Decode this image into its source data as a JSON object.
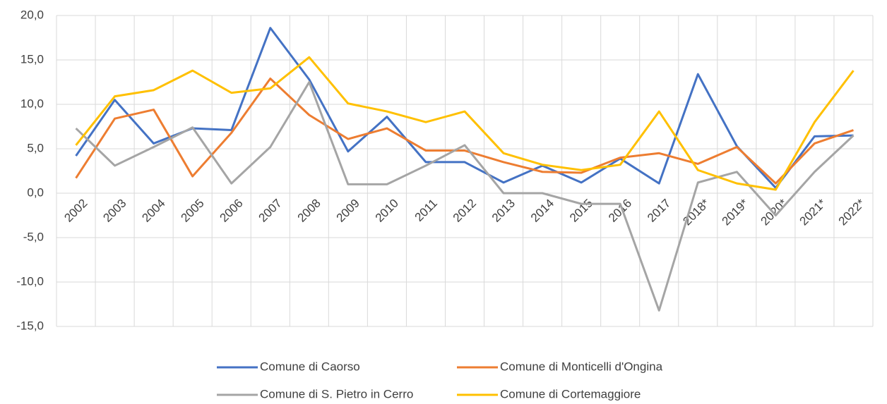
{
  "chart_data": {
    "type": "line",
    "categories": [
      "2002",
      "2003",
      "2004",
      "2005",
      "2006",
      "2007",
      "2008",
      "2009",
      "2010",
      "2011",
      "2012",
      "2013",
      "2014",
      "2015",
      "2016",
      "2017",
      "2018*",
      "2019*",
      "2020*",
      "2021*",
      "2022*"
    ],
    "series": [
      {
        "name": "Comune di Caorso",
        "color": "#4472c4",
        "values": [
          4.2,
          10.5,
          5.6,
          7.3,
          7.1,
          18.6,
          12.8,
          4.7,
          8.6,
          3.5,
          3.5,
          1.2,
          3.1,
          1.2,
          3.9,
          1.1,
          13.4,
          5.3,
          0.6,
          6.4,
          6.5
        ]
      },
      {
        "name": "Comune di Monticelli d'Ongina",
        "color": "#ed7d31",
        "values": [
          1.7,
          8.4,
          9.4,
          1.9,
          6.8,
          12.9,
          8.8,
          6.1,
          7.3,
          4.8,
          4.8,
          3.5,
          2.4,
          2.3,
          4.0,
          4.5,
          3.3,
          5.2,
          1.1,
          5.6,
          7.1
        ]
      },
      {
        "name": "Comune di S. Pietro in Cerro",
        "color": "#a5a5a5",
        "values": [
          7.3,
          3.1,
          5.2,
          7.4,
          1.1,
          5.2,
          12.5,
          1.0,
          1.0,
          3.1,
          5.4,
          0.0,
          0.0,
          -1.2,
          -1.2,
          -13.2,
          1.2,
          2.4,
          -2.5,
          2.4,
          6.5
        ]
      },
      {
        "name": "Comune di Cortemaggiore",
        "color": "#ffc000",
        "values": [
          5.4,
          10.9,
          11.6,
          13.8,
          11.3,
          11.8,
          15.3,
          10.1,
          9.2,
          8.0,
          9.2,
          4.5,
          3.2,
          2.6,
          3.2,
          9.2,
          2.6,
          1.1,
          0.4,
          8.0,
          13.8
        ]
      }
    ],
    "ylim": [
      -15,
      20
    ],
    "yticks": [
      {
        "value": -15,
        "label": "-15,0"
      },
      {
        "value": -10,
        "label": "-10,0"
      },
      {
        "value": -5,
        "label": "-5,0"
      },
      {
        "value": 0,
        "label": "0,0"
      },
      {
        "value": 5,
        "label": "5,0"
      },
      {
        "value": 10,
        "label": "10,0"
      },
      {
        "value": 15,
        "label": "15,0"
      },
      {
        "value": 20,
        "label": "20,0"
      }
    ],
    "grid": true,
    "legend": "bottom"
  }
}
